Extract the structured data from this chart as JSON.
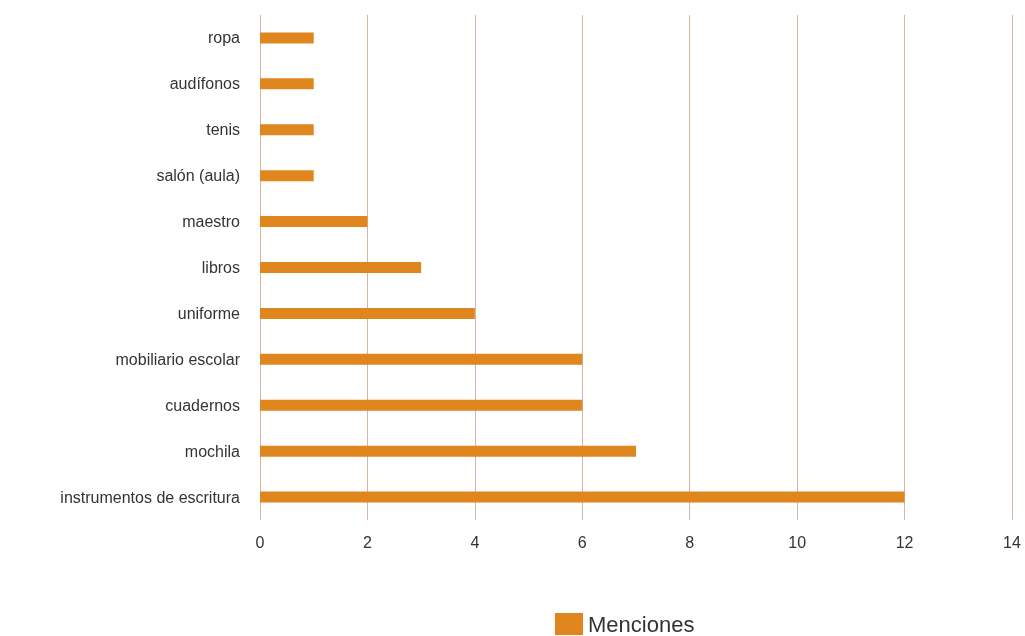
{
  "chart_data": {
    "type": "bar",
    "orientation": "horizontal",
    "categories": [
      "ropa",
      "audífonos",
      "tenis",
      "salón (aula)",
      "maestro",
      "libros",
      "uniforme",
      "mobiliario escolar",
      "cuadernos",
      "mochila",
      "instrumentos de escritura"
    ],
    "series": [
      {
        "name": "Menciones",
        "color": "#e0861e",
        "values": [
          1,
          1,
          1,
          1,
          2,
          3,
          4,
          6,
          6,
          7,
          12
        ]
      }
    ],
    "xlim": [
      0,
      14
    ],
    "xticks": [
      0,
      2,
      4,
      6,
      8,
      10,
      12,
      14
    ],
    "grid": "x",
    "legend": "bottom"
  }
}
